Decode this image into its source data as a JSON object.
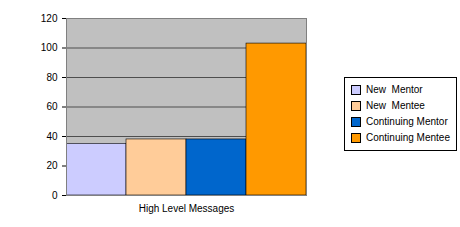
{
  "chart_data": {
    "type": "bar",
    "categories": [
      "High Level Messages"
    ],
    "series": [
      {
        "name": "New  Mentor",
        "color": "#ccccff",
        "values": [
          35
        ]
      },
      {
        "name": "New  Mentee",
        "color": "#ffcc99",
        "values": [
          38
        ]
      },
      {
        "name": "Continuing Mentor",
        "color": "#0066cc",
        "values": [
          38
        ]
      },
      {
        "name": "Continuing Mentee",
        "color": "#ff9900",
        "values": [
          103
        ]
      }
    ],
    "ylim": [
      0,
      120
    ],
    "yticks": [
      0,
      20,
      40,
      60,
      80,
      100,
      120
    ],
    "grid": true,
    "legend": "right"
  }
}
